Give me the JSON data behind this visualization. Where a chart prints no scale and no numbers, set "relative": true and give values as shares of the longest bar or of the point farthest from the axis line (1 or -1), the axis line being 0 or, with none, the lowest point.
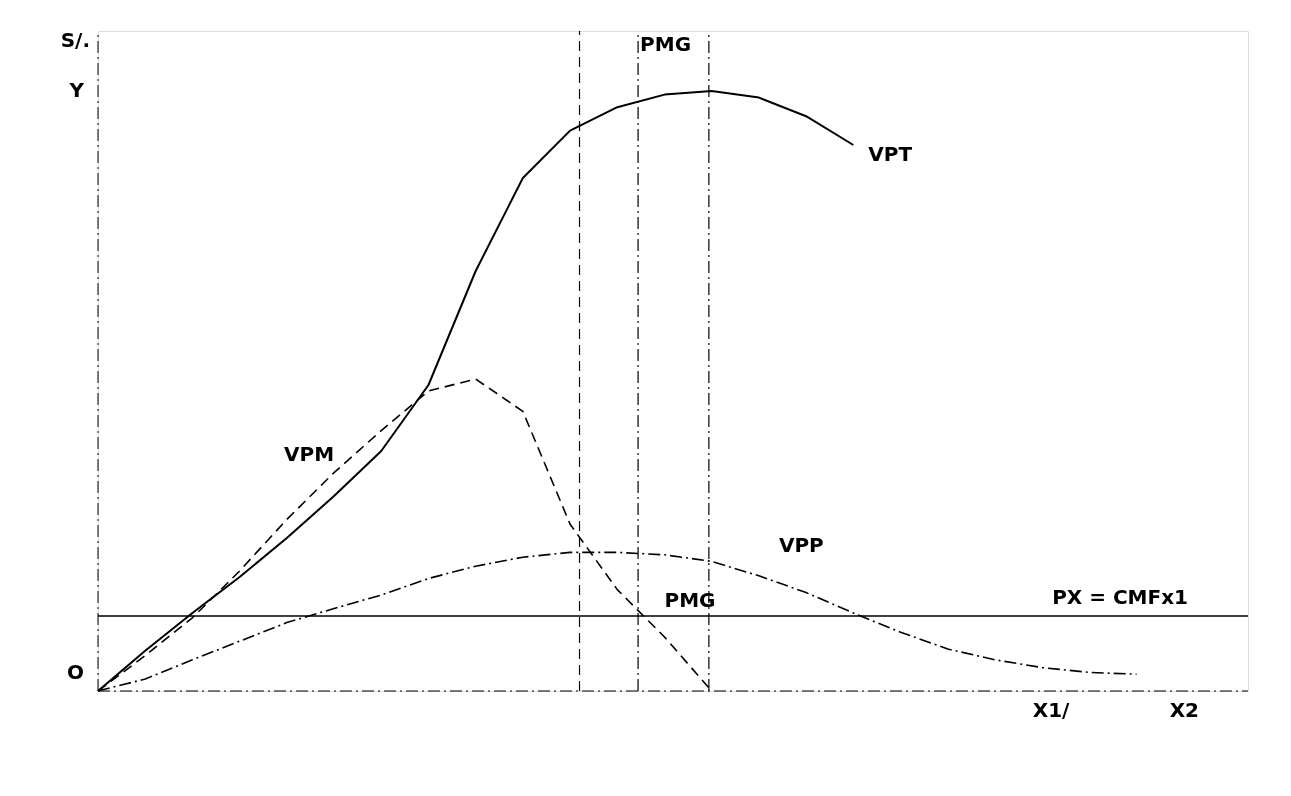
{
  "chart_data": {
    "type": "line",
    "relative": true,
    "ylabel": "S/.",
    "categories": [
      null,
      null,
      null,
      null,
      null,
      null,
      null,
      null,
      null,
      null,
      null,
      null,
      null,
      null,
      null,
      null,
      null,
      null,
      null,
      null,
      null,
      null,
      null,
      null,
      null
    ],
    "series": [
      {
        "name": "VPT",
        "color": "#000000",
        "line_style": "solid",
        "values": [
          0,
          0.067,
          0.13,
          0.19,
          0.255,
          0.325,
          0.4,
          0.51,
          0.7,
          0.855,
          0.934,
          0.973,
          0.994,
          1.0,
          0.989,
          0.958,
          0.91,
          null,
          null,
          null,
          null,
          null,
          null,
          null,
          null
        ]
      },
      {
        "name": "VPM",
        "color": "#000000",
        "line_style": "dashed",
        "values": [
          0,
          0.059,
          0.122,
          0.2,
          0.286,
          0.364,
          0.434,
          0.5,
          0.52,
          0.466,
          0.278,
          0.169,
          0.09,
          0,
          null,
          null,
          null,
          null,
          null,
          null,
          null,
          null,
          null,
          null,
          null
        ]
      },
      {
        "name": "VPP",
        "color": "#000000",
        "line_style": "dotted",
        "values": [
          0,
          0.02,
          0.052,
          0.083,
          0.114,
          0.1375,
          0.16,
          0.1875,
          0.208,
          0.223,
          0.231,
          0.231,
          0.227,
          0.216,
          0.192,
          0.164,
          0.13,
          0.098,
          0.07,
          0.052,
          0.039,
          0.031,
          0.028,
          null,
          null
        ]
      }
    ],
    "ref_lines": [
      {
        "axis": "y",
        "value": 0.125,
        "label": "PX = CMFx1",
        "color": "#000000",
        "line_style": "solid"
      }
    ],
    "annotations": [
      "O",
      "Y",
      "PMG",
      "PMG",
      "X1/",
      "X2"
    ]
  }
}
